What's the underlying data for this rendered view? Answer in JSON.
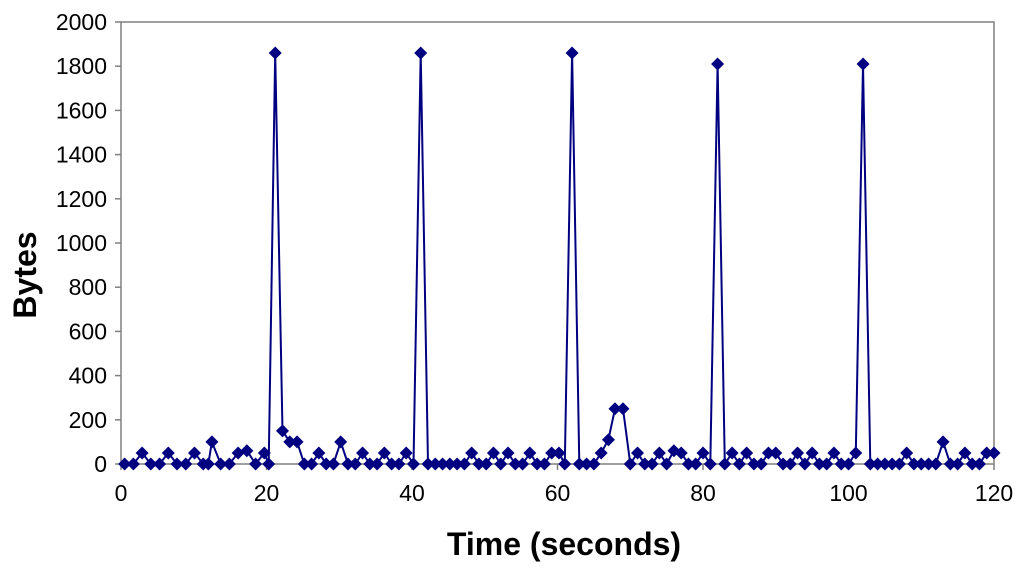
{
  "chart_data": {
    "type": "line",
    "title": "",
    "xlabel": "Time (seconds)",
    "ylabel": "Bytes",
    "xlim": [
      0,
      120
    ],
    "ylim": [
      0,
      2000
    ],
    "x_ticks": [
      0,
      20,
      40,
      60,
      80,
      100,
      120
    ],
    "y_ticks": [
      0,
      200,
      400,
      600,
      800,
      1000,
      1200,
      1400,
      1600,
      1800,
      2000
    ],
    "grid": false,
    "legend": "none",
    "marker": "diamond",
    "color": "#000080",
    "series": [
      {
        "x": [
          0.5,
          1.7,
          2.9,
          4.1,
          5.3,
          6.5,
          7.7,
          8.9,
          10.1,
          11.3,
          12.0,
          12.5,
          13.7,
          14.9,
          16.1,
          17.3,
          18.5,
          19.7,
          20.3,
          21.2,
          22.2,
          23.2,
          24.2,
          25.2,
          26.2,
          27.2,
          28.2,
          29.2,
          30.2,
          31.2,
          32.2,
          33.2,
          34.2,
          35.2,
          36.2,
          37.2,
          38.2,
          39.2,
          40.2,
          41.2,
          42.2,
          43.2,
          44.2,
          45.2,
          46.2,
          47.2,
          48.2,
          49.2,
          50.2,
          51.2,
          52.2,
          53.2,
          54.2,
          55.2,
          56.2,
          57.2,
          58.2,
          59.2,
          60.2,
          61.0,
          62.0,
          63.0,
          64.0,
          65.0,
          66.0,
          67.0,
          67.9,
          69.0,
          70.0,
          71.0,
          72.0,
          73.0,
          74.0,
          75.0,
          76.0,
          77.0,
          78.0,
          79.0,
          80.0,
          81.0,
          82.0,
          83.0,
          84.0,
          85.0,
          86.0,
          87.0,
          88.0,
          89.0,
          90.0,
          91.0,
          92.0,
          93.0,
          94.0,
          95.0,
          96.0,
          97.0,
          98.0,
          99.0,
          100.0,
          101.0,
          102.0,
          103.0,
          104.0,
          105.0,
          106.0,
          107.0,
          108.0,
          109.0,
          110.0,
          111.0,
          112.0,
          113.0,
          114.0,
          115.0,
          116.0,
          117.0,
          118.0,
          119.0,
          120.0
        ],
        "y": [
          0,
          0,
          50,
          0,
          0,
          50,
          0,
          0,
          50,
          0,
          0,
          100,
          0,
          0,
          50,
          60,
          0,
          50,
          0,
          1860,
          150,
          100,
          100,
          0,
          0,
          50,
          0,
          0,
          100,
          0,
          0,
          50,
          0,
          0,
          50,
          0,
          0,
          50,
          0,
          1860,
          0,
          0,
          0,
          0,
          0,
          0,
          50,
          0,
          0,
          50,
          0,
          50,
          0,
          0,
          50,
          0,
          0,
          50,
          50,
          0,
          1860,
          0,
          0,
          0,
          50,
          110,
          250,
          250,
          0,
          50,
          0,
          0,
          50,
          0,
          60,
          50,
          0,
          0,
          50,
          0,
          1810,
          0,
          50,
          0,
          50,
          0,
          0,
          50,
          50,
          0,
          0,
          50,
          0,
          50,
          0,
          0,
          50,
          0,
          0,
          50,
          1810,
          0,
          0,
          0,
          0,
          0,
          50,
          0,
          0,
          0,
          0,
          100,
          0,
          0,
          50,
          0,
          0,
          50,
          50
        ]
      }
    ]
  }
}
